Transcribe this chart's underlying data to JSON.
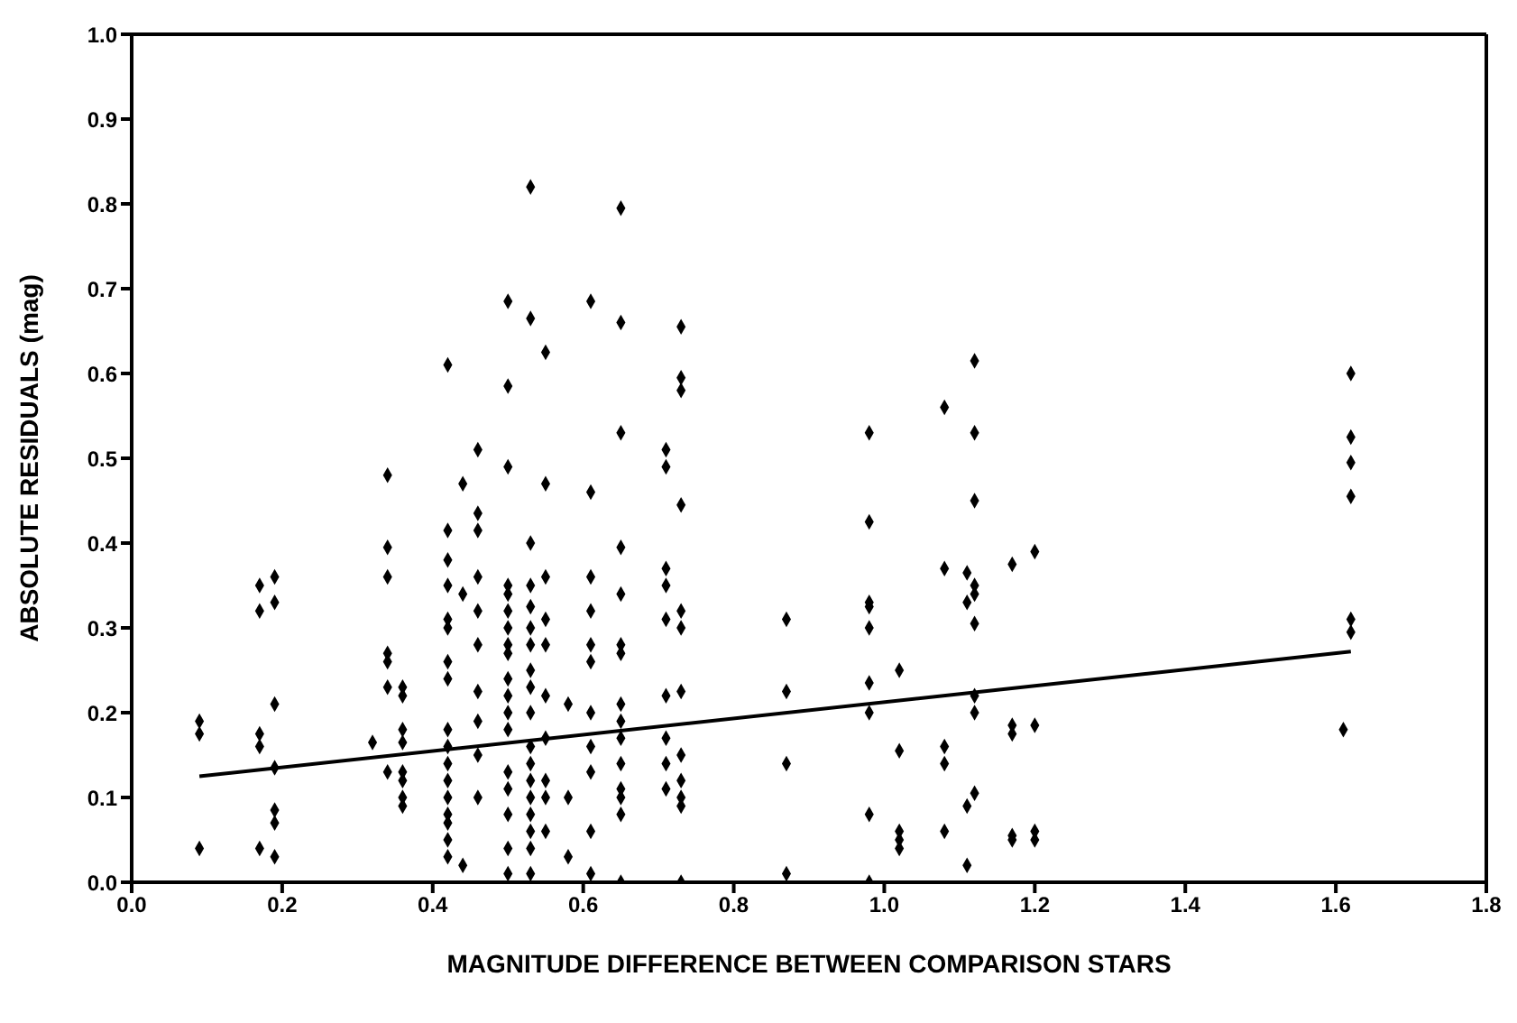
{
  "chart_data": {
    "type": "scatter",
    "xlabel": "MAGNITUDE DIFFERENCE BETWEEN COMPARISON STARS",
    "ylabel": "ABSOLUTE RESIDUALS (mag)",
    "xlim": [
      0,
      1.8
    ],
    "ylim": [
      0,
      1.0
    ],
    "xticks": [
      {
        "value": 0,
        "label": "0.0"
      },
      {
        "value": 0.2,
        "label": "0.2"
      },
      {
        "value": 0.4,
        "label": "0.4"
      },
      {
        "value": 0.6,
        "label": "0.6"
      },
      {
        "value": 0.8,
        "label": "0.8"
      },
      {
        "value": 1.0,
        "label": "1.0"
      },
      {
        "value": 1.2,
        "label": "1.2"
      },
      {
        "value": 1.4,
        "label": "1.4"
      },
      {
        "value": 1.6,
        "label": "1.6"
      },
      {
        "value": 1.8,
        "label": "1.8"
      }
    ],
    "yticks": [
      {
        "value": 0,
        "label": "0.0"
      },
      {
        "value": 0.1,
        "label": "0.1"
      },
      {
        "value": 0.2,
        "label": "0.2"
      },
      {
        "value": 0.3,
        "label": "0.3"
      },
      {
        "value": 0.4,
        "label": "0.4"
      },
      {
        "value": 0.5,
        "label": "0.5"
      },
      {
        "value": 0.6,
        "label": "0.6"
      },
      {
        "value": 0.7,
        "label": "0.7"
      },
      {
        "value": 0.8,
        "label": "0.8"
      },
      {
        "value": 0.9,
        "label": "0.9"
      },
      {
        "value": 1.0,
        "label": "1.0"
      }
    ],
    "marker": "diamond",
    "series": [
      {
        "color": "#000000",
        "x": [
          0.09,
          0.09,
          0.09,
          0.17,
          0.17,
          0.17,
          0.17,
          0.17,
          0.19,
          0.19,
          0.19,
          0.19,
          0.19,
          0.19,
          0.19,
          0.32,
          0.34,
          0.34,
          0.34,
          0.34,
          0.34,
          0.34,
          0.34,
          0.36,
          0.36,
          0.36,
          0.36,
          0.36,
          0.36,
          0.36,
          0.36,
          0.42,
          0.42,
          0.42,
          0.42,
          0.42,
          0.42,
          0.42,
          0.42,
          0.42,
          0.42,
          0.42,
          0.42,
          0.42,
          0.42,
          0.42,
          0.42,
          0.42,
          0.44,
          0.44,
          0.44,
          0.46,
          0.46,
          0.46,
          0.46,
          0.46,
          0.46,
          0.46,
          0.46,
          0.46,
          0.46,
          0.5,
          0.5,
          0.5,
          0.5,
          0.5,
          0.5,
          0.5,
          0.5,
          0.5,
          0.5,
          0.5,
          0.5,
          0.5,
          0.5,
          0.5,
          0.5,
          0.5,
          0.5,
          0.53,
          0.53,
          0.53,
          0.53,
          0.53,
          0.53,
          0.53,
          0.53,
          0.53,
          0.53,
          0.53,
          0.53,
          0.53,
          0.53,
          0.53,
          0.53,
          0.53,
          0.53,
          0.55,
          0.55,
          0.55,
          0.55,
          0.55,
          0.55,
          0.55,
          0.55,
          0.55,
          0.55,
          0.58,
          0.58,
          0.58,
          0.61,
          0.61,
          0.61,
          0.61,
          0.61,
          0.61,
          0.61,
          0.61,
          0.61,
          0.61,
          0.61,
          0.65,
          0.65,
          0.65,
          0.65,
          0.65,
          0.65,
          0.65,
          0.65,
          0.65,
          0.65,
          0.65,
          0.65,
          0.65,
          0.65,
          0.65,
          0.71,
          0.71,
          0.71,
          0.71,
          0.71,
          0.71,
          0.71,
          0.71,
          0.71,
          0.73,
          0.73,
          0.73,
          0.73,
          0.73,
          0.73,
          0.73,
          0.73,
          0.73,
          0.73,
          0.73,
          0.73,
          0.87,
          0.87,
          0.87,
          0.87,
          0.98,
          0.98,
          0.98,
          0.98,
          0.98,
          0.98,
          0.98,
          0.98,
          0.98,
          1.02,
          1.02,
          1.02,
          1.02,
          1.02,
          1.08,
          1.08,
          1.08,
          1.08,
          1.08,
          1.11,
          1.11,
          1.11,
          1.11,
          1.12,
          1.12,
          1.12,
          1.12,
          1.12,
          1.12,
          1.12,
          1.12,
          1.12,
          1.17,
          1.17,
          1.17,
          1.17,
          1.17,
          1.2,
          1.2,
          1.2,
          1.2,
          1.61,
          1.62,
          1.62,
          1.62,
          1.62,
          1.62,
          1.62
        ],
        "values": [
          0.19,
          0.175,
          0.04,
          0.35,
          0.32,
          0.175,
          0.16,
          0.04,
          0.36,
          0.33,
          0.21,
          0.135,
          0.085,
          0.07,
          0.03,
          0.165,
          0.48,
          0.395,
          0.36,
          0.27,
          0.26,
          0.23,
          0.13,
          0.23,
          0.22,
          0.18,
          0.165,
          0.13,
          0.12,
          0.1,
          0.09,
          0.61,
          0.415,
          0.38,
          0.35,
          0.31,
          0.3,
          0.26,
          0.24,
          0.18,
          0.16,
          0.14,
          0.12,
          0.1,
          0.08,
          0.07,
          0.05,
          0.03,
          0.47,
          0.34,
          0.02,
          0.51,
          0.435,
          0.415,
          0.36,
          0.32,
          0.28,
          0.225,
          0.19,
          0.15,
          0.1,
          0.685,
          0.585,
          0.49,
          0.35,
          0.34,
          0.32,
          0.3,
          0.28,
          0.27,
          0.24,
          0.22,
          0.2,
          0.18,
          0.13,
          0.11,
          0.08,
          0.04,
          0.01,
          0.82,
          0.665,
          0.4,
          0.35,
          0.325,
          0.3,
          0.28,
          0.25,
          0.23,
          0.2,
          0.16,
          0.14,
          0.12,
          0.1,
          0.08,
          0.06,
          0.04,
          0.01,
          0.625,
          0.47,
          0.36,
          0.31,
          0.28,
          0.22,
          0.17,
          0.12,
          0.1,
          0.06,
          0.21,
          0.1,
          0.03,
          0.685,
          0.46,
          0.36,
          0.32,
          0.28,
          0.26,
          0.2,
          0.16,
          0.13,
          0.06,
          0.01,
          0.795,
          0.66,
          0.53,
          0.395,
          0.34,
          0.28,
          0.27,
          0.21,
          0.19,
          0.17,
          0.14,
          0.11,
          0.1,
          0.08,
          0,
          0.51,
          0.49,
          0.37,
          0.35,
          0.31,
          0.22,
          0.17,
          0.14,
          0.11,
          0.655,
          0.595,
          0.58,
          0.445,
          0.32,
          0.3,
          0.225,
          0.15,
          0.12,
          0.1,
          0.09,
          0,
          0.31,
          0.225,
          0.14,
          0.01,
          0.53,
          0.425,
          0.33,
          0.325,
          0.3,
          0.235,
          0.2,
          0.08,
          0,
          0.25,
          0.155,
          0.06,
          0.05,
          0.04,
          0.56,
          0.37,
          0.16,
          0.14,
          0.06,
          0.365,
          0.33,
          0.09,
          0.02,
          0.615,
          0.53,
          0.45,
          0.35,
          0.34,
          0.305,
          0.22,
          0.2,
          0.105,
          0.375,
          0.185,
          0.175,
          0.055,
          0.05,
          0.39,
          0.185,
          0.06,
          0.05,
          0.18,
          0.6,
          0.525,
          0.495,
          0.455,
          0.31,
          0.295
        ]
      },
      {
        "type": "line",
        "marker": "none",
        "color": "#000000",
        "line_style": "solid",
        "x": [
          0.09,
          1.62
        ],
        "values": [
          0.125,
          0.272
        ]
      }
    ]
  }
}
